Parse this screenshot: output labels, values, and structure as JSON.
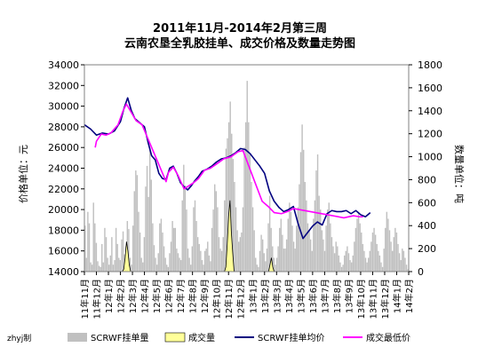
{
  "chart_data": {
    "type": "line",
    "title_line1": "2011年11月-2014年2月第三周",
    "title_line2": "云南农垦全乳胶挂单、成交价格及数量走势图",
    "ylabel_left": "价格单位：元",
    "ylabel_right": "数量单位：吨",
    "y_left": {
      "min": 14000,
      "max": 34000,
      "ticks": [
        "14000",
        "16000",
        "18000",
        "20000",
        "22000",
        "24000",
        "26000",
        "28000",
        "30000",
        "32000",
        "34000"
      ]
    },
    "y_right": {
      "min": 0,
      "max": 1800,
      "ticks": [
        "0",
        "200",
        "400",
        "600",
        "800",
        "1000",
        "1200",
        "1400",
        "1600",
        "1800"
      ]
    },
    "x_ticks": [
      "11年11月",
      "11年12月",
      "12年1月",
      "12年2月",
      "12年3月",
      "12年4月",
      "12年5月",
      "12年6月",
      "12年7月",
      "12年8月",
      "12年9月",
      "12年10月",
      "12年11月",
      "12年12月",
      "13年1月",
      "13年2月",
      "13年3月",
      "13年4月",
      "13年5月",
      "13年6月",
      "13年7月",
      "13年8月",
      "13年9月",
      "13年10月",
      "13年11月",
      "13年12月",
      "14年1月",
      "14年2月"
    ],
    "credit": "zhyj制",
    "legend": [
      {
        "label": "SCRWF挂单量",
        "color": "#c0c0c0",
        "kind": "bar"
      },
      {
        "label": "成交量",
        "color": "#ffff99",
        "kind": "area"
      },
      {
        "label": "SCRWF挂单均价",
        "color": "#000080",
        "kind": "line"
      },
      {
        "label": "成交最低价",
        "color": "#ff00ff",
        "kind": "line"
      }
    ],
    "series": [
      {
        "name": "SCRWF挂单均价",
        "axis": "left",
        "color": "#000080",
        "points": [
          [
            0,
            28200
          ],
          [
            0.5,
            27800
          ],
          [
            1.0,
            27200
          ],
          [
            1.5,
            27400
          ],
          [
            2.0,
            27300
          ],
          [
            2.5,
            27600
          ],
          [
            3.0,
            28500
          ],
          [
            3.3,
            29800
          ],
          [
            3.6,
            30800
          ],
          [
            3.9,
            29600
          ],
          [
            4.2,
            28800
          ],
          [
            4.6,
            28400
          ],
          [
            5.0,
            28000
          ],
          [
            5.3,
            26500
          ],
          [
            5.6,
            25200
          ],
          [
            5.9,
            24800
          ],
          [
            6.2,
            23500
          ],
          [
            6.5,
            23000
          ],
          [
            6.8,
            22900
          ],
          [
            7.1,
            24000
          ],
          [
            7.4,
            24200
          ],
          [
            7.7,
            23500
          ],
          [
            8.0,
            22600
          ],
          [
            8.3,
            22200
          ],
          [
            8.6,
            21900
          ],
          [
            8.9,
            22300
          ],
          [
            9.2,
            22800
          ],
          [
            9.5,
            23200
          ],
          [
            9.8,
            23700
          ],
          [
            10.2,
            23900
          ],
          [
            10.6,
            24200
          ],
          [
            11.0,
            24600
          ],
          [
            11.4,
            24900
          ],
          [
            11.8,
            25000
          ],
          [
            12.2,
            25200
          ],
          [
            12.6,
            25500
          ],
          [
            13.0,
            25900
          ],
          [
            13.4,
            25800
          ],
          [
            13.8,
            25400
          ],
          [
            14.2,
            24800
          ],
          [
            14.6,
            24200
          ],
          [
            15.0,
            23500
          ],
          [
            15.4,
            21800
          ],
          [
            15.8,
            20800
          ],
          [
            16.2,
            20200
          ],
          [
            16.6,
            19800
          ],
          [
            17.0,
            20000
          ],
          [
            17.4,
            20300
          ],
          [
            17.8,
            18600
          ],
          [
            18.2,
            17200
          ],
          [
            18.6,
            17800
          ],
          [
            19.0,
            18400
          ],
          [
            19.4,
            18800
          ],
          [
            19.8,
            18500
          ],
          [
            20.2,
            19600
          ],
          [
            20.6,
            19900
          ],
          [
            21.0,
            19800
          ],
          [
            21.4,
            19800
          ],
          [
            21.8,
            19900
          ],
          [
            22.2,
            19600
          ],
          [
            22.6,
            19900
          ],
          [
            23.0,
            19500
          ],
          [
            23.4,
            19300
          ],
          [
            23.8,
            19700
          ]
        ]
      },
      {
        "name": "成交最低价",
        "axis": "left",
        "color": "#ff00ff",
        "points": [
          [
            0.9,
            26000
          ],
          [
            1.0,
            26600
          ],
          [
            1.4,
            27300
          ],
          [
            1.8,
            27200
          ],
          [
            2.2,
            27400
          ],
          [
            2.8,
            28200
          ],
          [
            3.2,
            29500
          ],
          [
            3.5,
            30200
          ],
          [
            3.9,
            29400
          ],
          [
            4.3,
            28600
          ],
          [
            4.8,
            28200
          ],
          [
            6.8,
            22700
          ],
          [
            7.0,
            23600
          ],
          [
            7.4,
            24100
          ],
          [
            7.8,
            23300
          ],
          [
            8.3,
            22000
          ],
          [
            9.1,
            22600
          ],
          [
            9.5,
            23000
          ],
          [
            10.0,
            23800
          ],
          [
            10.5,
            24000
          ],
          [
            11.0,
            24400
          ],
          [
            11.6,
            24900
          ],
          [
            12.2,
            25100
          ],
          [
            12.8,
            25600
          ],
          [
            13.2,
            25700
          ],
          [
            14.8,
            20800
          ],
          [
            15.3,
            20300
          ],
          [
            15.8,
            19700
          ],
          [
            16.4,
            19600
          ],
          [
            16.9,
            19800
          ],
          [
            17.4,
            20100
          ],
          [
            21.6,
            19200
          ],
          [
            22.4,
            19400
          ],
          [
            22.9,
            19300
          ],
          [
            23.2,
            19300
          ]
        ]
      },
      {
        "name": "SCRWF挂单量",
        "axis": "right",
        "color": "#c0c0c0",
        "values": [
          400,
          120,
          520,
          420,
          80,
          60,
          600,
          420,
          250,
          90,
          50,
          40,
          240,
          80,
          380,
          300,
          120,
          60,
          140,
          300,
          60,
          100,
          380,
          240,
          120,
          100,
          280,
          350,
          150,
          220,
          440,
          370,
          120,
          60,
          400,
          700,
          880,
          840,
          520,
          340,
          120,
          80,
          300,
          740,
          920,
          650,
          1080,
          800,
          420,
          230,
          120,
          60,
          160,
          420,
          460,
          340,
          220,
          120,
          60,
          40,
          160,
          260,
          440,
          380,
          380,
          200,
          160,
          120,
          100,
          620,
          930,
          750,
          540,
          200,
          120,
          60,
          220,
          560,
          620,
          440,
          300,
          240,
          180,
          100,
          60,
          180,
          200,
          260,
          140,
          90,
          380,
          540,
          760,
          700,
          560,
          300,
          200,
          180,
          300,
          620,
          1070,
          1160,
          1300,
          1480,
          1200,
          980,
          780,
          560,
          360,
          260,
          300,
          340,
          560,
          1080,
          1300,
          1660,
          1300,
          1020,
          780,
          560,
          360,
          120,
          60,
          40,
          180,
          320,
          280,
          160,
          90,
          200,
          420,
          660,
          380,
          220,
          120,
          60,
          120,
          220,
          380,
          460,
          320,
          200,
          200,
          280,
          460,
          600,
          520,
          400,
          260,
          200,
          400,
          560,
          760,
          1040,
          1280,
          1060,
          780,
          620,
          420,
          360,
          280,
          180,
          460,
          620,
          880,
          1020,
          660,
          540,
          360,
          280,
          180,
          400,
          540,
          600,
          420,
          300,
          220,
          160,
          260,
          220,
          140,
          80,
          40,
          60,
          140,
          180,
          220,
          160,
          100,
          80,
          140,
          260,
          380,
          460,
          520,
          420,
          340,
          240,
          180,
          120,
          80,
          120,
          180,
          260,
          340,
          380,
          320,
          240,
          180,
          140,
          80,
          40,
          200,
          380,
          520,
          460,
          360,
          260,
          180,
          300,
          380,
          340,
          240,
          160,
          100,
          200,
          180,
          120,
          60,
          20
        ]
      },
      {
        "name": "成交量",
        "axis": "right",
        "color": "#ffff99",
        "values": [
          0,
          0,
          0,
          0,
          0,
          0,
          0,
          0,
          0,
          0,
          0,
          0,
          0,
          0,
          0,
          0,
          0,
          0,
          0,
          0,
          0,
          0,
          0,
          0,
          0,
          0,
          0,
          0,
          20,
          120,
          260,
          180,
          60,
          0,
          0,
          0,
          0,
          0,
          0,
          0,
          0,
          0,
          0,
          0,
          0,
          0,
          0,
          0,
          0,
          0,
          0,
          0,
          0,
          0,
          0,
          0,
          0,
          0,
          0,
          0,
          0,
          0,
          0,
          0,
          0,
          0,
          0,
          0,
          0,
          0,
          0,
          0,
          0,
          0,
          0,
          0,
          0,
          0,
          0,
          0,
          0,
          0,
          0,
          0,
          0,
          0,
          0,
          0,
          0,
          0,
          0,
          0,
          0,
          0,
          0,
          0,
          0,
          0,
          0,
          0,
          0,
          0,
          40,
          240,
          480,
          620,
          340,
          160,
          0,
          0,
          0,
          0,
          0,
          0,
          0,
          0,
          0,
          0,
          0,
          0,
          0,
          0,
          0,
          0,
          0,
          0,
          0,
          0,
          0,
          0,
          0,
          0,
          0,
          0,
          60,
          120,
          40,
          0,
          0,
          0,
          0,
          0,
          0,
          0,
          0,
          0,
          0,
          0,
          0,
          0,
          0,
          0,
          0,
          0,
          0,
          0,
          0,
          0,
          0,
          0,
          0,
          0,
          0,
          0,
          0,
          0,
          0,
          0,
          0,
          0,
          0,
          0,
          0,
          0,
          0,
          0,
          0,
          0,
          0,
          0,
          0,
          0,
          0,
          0,
          0,
          0,
          0,
          0,
          0,
          0,
          0,
          0,
          0,
          0,
          0,
          0,
          0,
          0,
          0,
          0,
          0,
          0,
          0,
          0,
          0,
          0,
          0,
          0,
          0,
          0,
          0,
          0,
          0,
          0,
          0,
          0,
          0,
          0,
          0,
          0,
          0,
          0,
          0,
          0,
          0,
          0,
          0,
          0,
          0,
          0,
          0,
          0,
          0,
          0,
          0
        ]
      }
    ]
  }
}
